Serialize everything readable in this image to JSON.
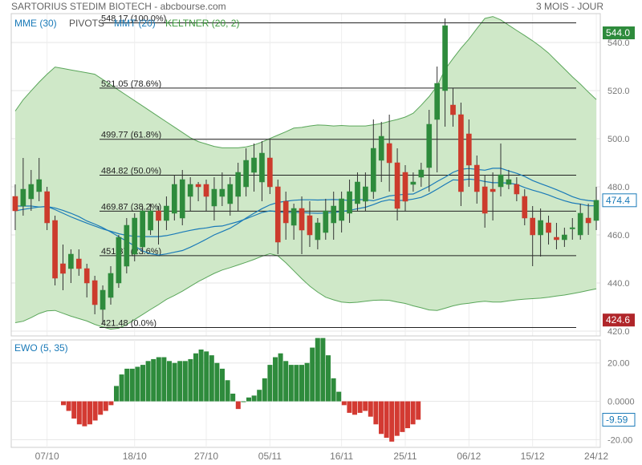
{
  "header": {
    "title": "SARTORIUS STEDIM BIOTECH - abcbourse.com",
    "period": "3 MOIS - JOUR"
  },
  "legend": [
    {
      "label": "MME (30)",
      "color": "#1a7ab8"
    },
    {
      "label": "PIVOTS",
      "color": "#555555"
    },
    {
      "label": "MMT (20)",
      "color": "#1a7ab8"
    },
    {
      "label": "KELTNER (20, 2)",
      "color": "#3e9a3e"
    }
  ],
  "colors": {
    "up": "#2e8b3c",
    "down": "#cc3b2c",
    "keltner_fill": "#cfe8c8",
    "keltner_line": "#5aa65a",
    "mme": "#1a7ab8",
    "mmt": "#1a7ab8",
    "ewo_pos": "#2e8b3c",
    "ewo_neg": "#d33a32"
  },
  "chart_data": [
    {
      "type": "candlestick",
      "ylim": [
        418,
        552
      ],
      "yticks": [
        "420.0",
        "440.0",
        "460.0",
        "480.0",
        "500.0",
        "520.0",
        "540.0"
      ],
      "xlabels": [
        "07/10",
        "18/10",
        "27/10",
        "05/11",
        "16/11",
        "25/11",
        "06/12",
        "15/12",
        "24/12"
      ],
      "last_price": "474.4",
      "high_label": "544.0",
      "low_label": "424.6",
      "fibonacci": [
        {
          "label": "548.17  (100.0%)",
          "value": 548.17
        },
        {
          "label": "521.05  (78.6%)",
          "value": 521.05
        },
        {
          "label": "499.77  (61.8%)",
          "value": 499.77
        },
        {
          "label": "484.82  (50.0%)",
          "value": 484.82
        },
        {
          "label": "469.87  (38.2%)",
          "value": 469.87
        },
        {
          "label": "451.37  (23.6%)",
          "value": 451.37
        },
        {
          "label": "421.48  (0.0%)",
          "value": 421.48
        }
      ],
      "candles": [
        [
          476,
          470,
          481,
          462
        ],
        [
          472,
          479,
          492,
          468
        ],
        [
          475,
          481,
          487,
          470
        ],
        [
          478,
          483,
          492,
          474
        ],
        [
          478,
          465,
          480,
          462
        ],
        [
          466,
          442,
          468,
          439
        ],
        [
          448,
          444,
          456,
          437
        ],
        [
          446,
          452,
          454,
          440
        ],
        [
          450,
          446,
          454,
          443
        ],
        [
          446,
          440,
          448,
          434
        ],
        [
          441,
          431,
          443,
          427
        ],
        [
          429,
          437,
          439,
          423
        ],
        [
          434,
          444,
          447,
          431
        ],
        [
          440,
          459,
          460,
          438
        ],
        [
          447,
          464,
          467,
          444
        ],
        [
          452,
          467,
          469,
          449
        ],
        [
          455,
          470,
          472,
          452
        ],
        [
          462,
          470,
          473,
          460
        ],
        [
          470,
          466,
          472,
          456
        ],
        [
          466,
          472,
          476,
          462
        ],
        [
          469,
          481,
          485,
          466
        ],
        [
          467,
          483,
          487,
          464
        ],
        [
          476,
          481,
          484,
          470
        ],
        [
          481,
          480,
          482,
          474
        ],
        [
          481,
          476,
          483,
          470
        ],
        [
          472,
          479,
          484,
          466
        ],
        [
          476,
          479,
          486,
          472
        ],
        [
          473,
          481,
          484,
          468
        ],
        [
          476,
          486,
          490,
          470
        ],
        [
          480,
          491,
          496,
          476
        ],
        [
          486,
          492,
          498,
          478
        ],
        [
          482,
          494,
          499,
          474
        ],
        [
          492,
          480,
          500,
          477
        ],
        [
          480,
          457,
          483,
          452
        ],
        [
          474,
          465,
          478,
          458
        ],
        [
          464,
          471,
          473,
          458
        ],
        [
          471,
          462,
          476,
          452
        ],
        [
          468,
          460,
          474,
          455
        ],
        [
          458,
          465,
          467,
          454
        ],
        [
          461,
          470,
          475,
          458
        ],
        [
          465,
          472,
          478,
          458
        ],
        [
          466,
          475,
          478,
          461
        ],
        [
          469,
          478,
          483,
          465
        ],
        [
          473,
          482,
          486,
          470
        ],
        [
          474,
          480,
          486,
          470
        ],
        [
          478,
          496,
          508,
          475
        ],
        [
          491,
          501,
          507,
          482
        ],
        [
          498,
          490,
          510,
          478
        ],
        [
          490,
          471,
          496,
          466
        ],
        [
          486,
          474,
          489,
          470
        ],
        [
          481,
          482,
          486,
          478
        ],
        [
          484,
          487,
          490,
          480
        ],
        [
          488,
          506,
          512,
          478
        ],
        [
          508,
          523,
          530,
          486
        ],
        [
          520,
          547,
          550,
          505
        ],
        [
          514,
          510,
          521,
          505
        ],
        [
          510,
          478,
          515,
          472
        ],
        [
          502,
          489,
          508,
          480
        ],
        [
          489,
          478,
          493,
          473
        ],
        [
          480,
          469,
          485,
          463
        ],
        [
          479,
          478,
          486,
          466
        ],
        [
          480,
          485,
          498,
          476
        ],
        [
          481,
          483,
          487,
          479
        ],
        [
          481,
          477,
          484,
          474
        ],
        [
          476,
          467,
          479,
          464
        ],
        [
          467,
          460,
          472,
          447
        ],
        [
          460,
          466,
          471,
          451
        ],
        [
          465,
          461,
          468,
          456
        ],
        [
          459,
          458,
          465,
          454
        ],
        [
          458,
          460,
          463,
          455
        ],
        [
          463,
          463,
          467,
          458
        ],
        [
          460,
          469,
          473,
          458
        ],
        [
          467,
          465,
          473,
          460
        ],
        [
          466,
          474.4,
          480,
          462
        ]
      ],
      "keltner_upper": [
        511.5,
        516.2,
        519.9,
        523.5,
        526.8,
        529.8,
        529.2,
        528.6,
        528.0,
        527.4,
        526.8,
        524.6,
        522.4,
        520.2,
        518.0,
        515.8,
        513.6,
        511.4,
        509.2,
        507.0,
        504.8,
        502.6,
        500.4,
        498.8,
        497.8,
        496.8,
        496.2,
        496.2,
        496.2,
        496.6,
        497.4,
        498.6,
        500.1,
        501.5,
        502.9,
        504.4,
        504.7,
        505.3,
        505.7,
        505.6,
        505.3,
        505.5,
        505.3,
        505.3,
        505.3,
        505.8,
        506.3,
        507.2,
        508.0,
        509.0,
        510.6,
        513.9,
        517.5,
        521.9,
        528.8,
        533.3,
        537.6,
        541.4,
        545.8,
        550.0,
        550.8,
        549.4,
        547.2,
        545.0,
        542.9,
        540.7,
        538.3,
        535.6,
        532.3,
        529.0,
        525.7,
        522.7,
        519.4,
        516.3
      ],
      "keltner_lower": [
        423.5,
        424.1,
        425.6,
        427.3,
        428.4,
        428.6,
        427.4,
        426.2,
        425.2,
        424.2,
        422.8,
        421.7,
        420.8,
        421.2,
        422.7,
        424.8,
        426.9,
        429.0,
        431.0,
        433.2,
        434.8,
        436.6,
        438.6,
        440.6,
        442.3,
        444.0,
        445.4,
        446.4,
        447.5,
        448.6,
        449.8,
        451.1,
        452.2,
        451.3,
        448.4,
        445.1,
        441.8,
        438.7,
        436.2,
        434.1,
        433.0,
        432.1,
        431.8,
        432.0,
        432.4,
        432.8,
        432.9,
        432.8,
        432.1,
        431.5,
        430.5,
        429.7,
        428.8,
        428.6,
        429.5,
        430.5,
        431.2,
        431.6,
        432.1,
        432.4,
        432.1,
        432.1,
        432.6,
        433.0,
        433.3,
        433.5,
        433.7,
        434.1,
        434.6,
        435.0,
        435.6,
        436.2,
        436.9,
        437.6
      ],
      "mme_30": [
        470.0,
        470.6,
        471.1,
        471.6,
        471.8,
        470.5,
        469.0,
        467.5,
        466.2,
        464.9,
        463.7,
        462.5,
        461.5,
        460.5,
        459.8,
        459.4,
        459.3,
        459.3,
        459.3,
        459.7,
        460.4,
        461.2,
        461.9,
        462.5,
        462.9,
        463.5,
        463.7,
        464.6,
        465.5,
        466.7,
        468.0,
        469.3,
        470.0,
        469.6,
        469.3,
        469.4,
        469.3,
        469.1,
        469.0,
        469.1,
        469.3,
        469.7,
        470.2,
        470.9,
        471.5,
        472.6,
        473.9,
        474.6,
        474.3,
        474.4,
        474.9,
        475.6,
        477.1,
        479.0,
        481.0,
        482.9,
        482.7,
        483.2,
        482.9,
        482.2,
        481.7,
        481.7,
        481.5,
        481.0,
        479.7,
        478.6,
        477.7,
        476.6,
        475.3,
        474.2,
        473.3,
        472.8,
        472.1,
        472.1
      ],
      "mmt_20": [
        472.0,
        472.0,
        472.0,
        471.6,
        471.8,
        471.2,
        470.2,
        469.0,
        467.6,
        465.8,
        464.5,
        463.0,
        461.2,
        459.3,
        457.4,
        455.4,
        453.3,
        452.2,
        451.6,
        452.1,
        452.8,
        453.5,
        454.9,
        456.5,
        458.2,
        460.0,
        461.4,
        462.8,
        464.8,
        467.0,
        469.0,
        470.9,
        472.5,
        473.5,
        474.0,
        474.4,
        474.6,
        474.6,
        474.5,
        474.6,
        474.7,
        474.6,
        474.3,
        474.7,
        474.6,
        474.2,
        475.2,
        476.2,
        476.6,
        476.9,
        477.0,
        478.6,
        480.2,
        482.2,
        484.0,
        486.0,
        487.3,
        487.6,
        487.2,
        486.9,
        487.7,
        487.7,
        486.6,
        485.6,
        484.3,
        482.6,
        481.3,
        480.1,
        478.8,
        477.4,
        475.9,
        474.8,
        474.3,
        474.0
      ]
    },
    {
      "type": "bar",
      "title": "EWO (5, 35)",
      "ylim": [
        -24,
        32
      ],
      "yticks": [
        "20.00",
        "0.0000",
        "-20.00"
      ],
      "last_value": "-9.59",
      "values": [
        -2,
        -5,
        -9,
        -12,
        -13,
        -12,
        -10,
        -7,
        -5,
        -2,
        8,
        14,
        17,
        17,
        18,
        19,
        21,
        22,
        23,
        23,
        21,
        20,
        21,
        21,
        22,
        25,
        27,
        26,
        24,
        20,
        17,
        11,
        4,
        -4,
        0,
        2,
        3,
        6,
        12,
        19,
        23,
        25,
        21,
        19,
        19,
        19,
        20,
        28,
        33,
        33,
        24,
        12,
        5,
        -2,
        -6,
        -7,
        -6,
        -5,
        -8,
        -12,
        -17,
        -19,
        -21,
        -18,
        -16,
        -14,
        -12,
        -9.59
      ]
    }
  ]
}
